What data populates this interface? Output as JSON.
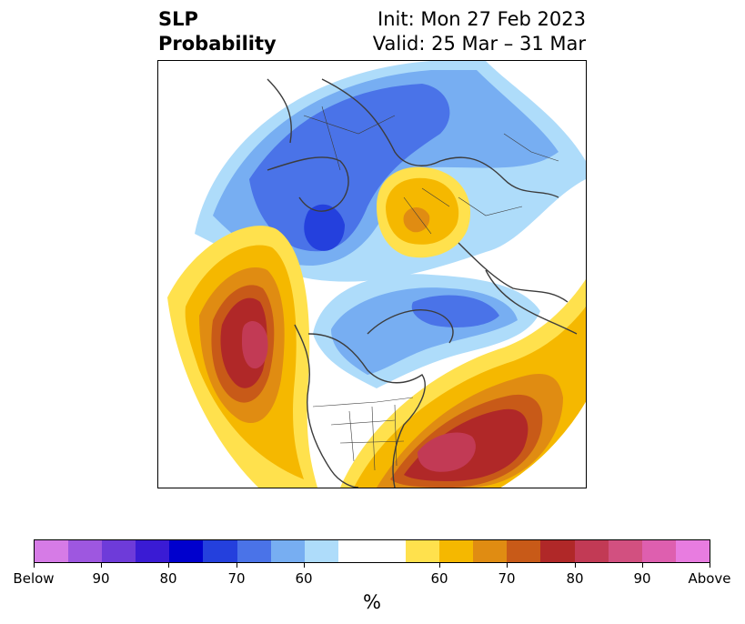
{
  "title": {
    "variable": "SLP",
    "product": "Probability",
    "init": "Init: Mon 27 Feb 2023",
    "valid": "Valid: 25 Mar – 31 Mar"
  },
  "map": {
    "projection": "north-polar-stereographic",
    "features": [
      "coastlines",
      "country-borders",
      "us-state-borders"
    ],
    "anomalies": [
      {
        "region": "north-pacific",
        "category": "above",
        "max_percent": 90
      },
      {
        "region": "western-atlantic-eastern-us",
        "category": "above",
        "max_percent": 90
      },
      {
        "region": "russia-kazakhstan",
        "category": "above",
        "max_percent": 70
      },
      {
        "region": "canada-arctic",
        "category": "below",
        "max_percent": 80
      },
      {
        "region": "siberia-arctic-ocean",
        "category": "below",
        "max_percent": 80
      }
    ]
  },
  "colorbar": {
    "label": "%",
    "colors": [
      "#d67be6",
      "#9e57e0",
      "#6e3bd9",
      "#3a1bd4",
      "#0000cd",
      "#2440dd",
      "#4a73e8",
      "#77aef2",
      "#aedcfa",
      "#ffffff",
      "#ffffff",
      "#ffe14d",
      "#f5b800",
      "#e08c12",
      "#c85a18",
      "#b02828",
      "#c23a55",
      "#d25080",
      "#de5faf",
      "#e87ce0"
    ],
    "tick_labels": [
      "Below",
      "90",
      "80",
      "70",
      "60",
      "60",
      "70",
      "80",
      "90",
      "Above"
    ]
  }
}
